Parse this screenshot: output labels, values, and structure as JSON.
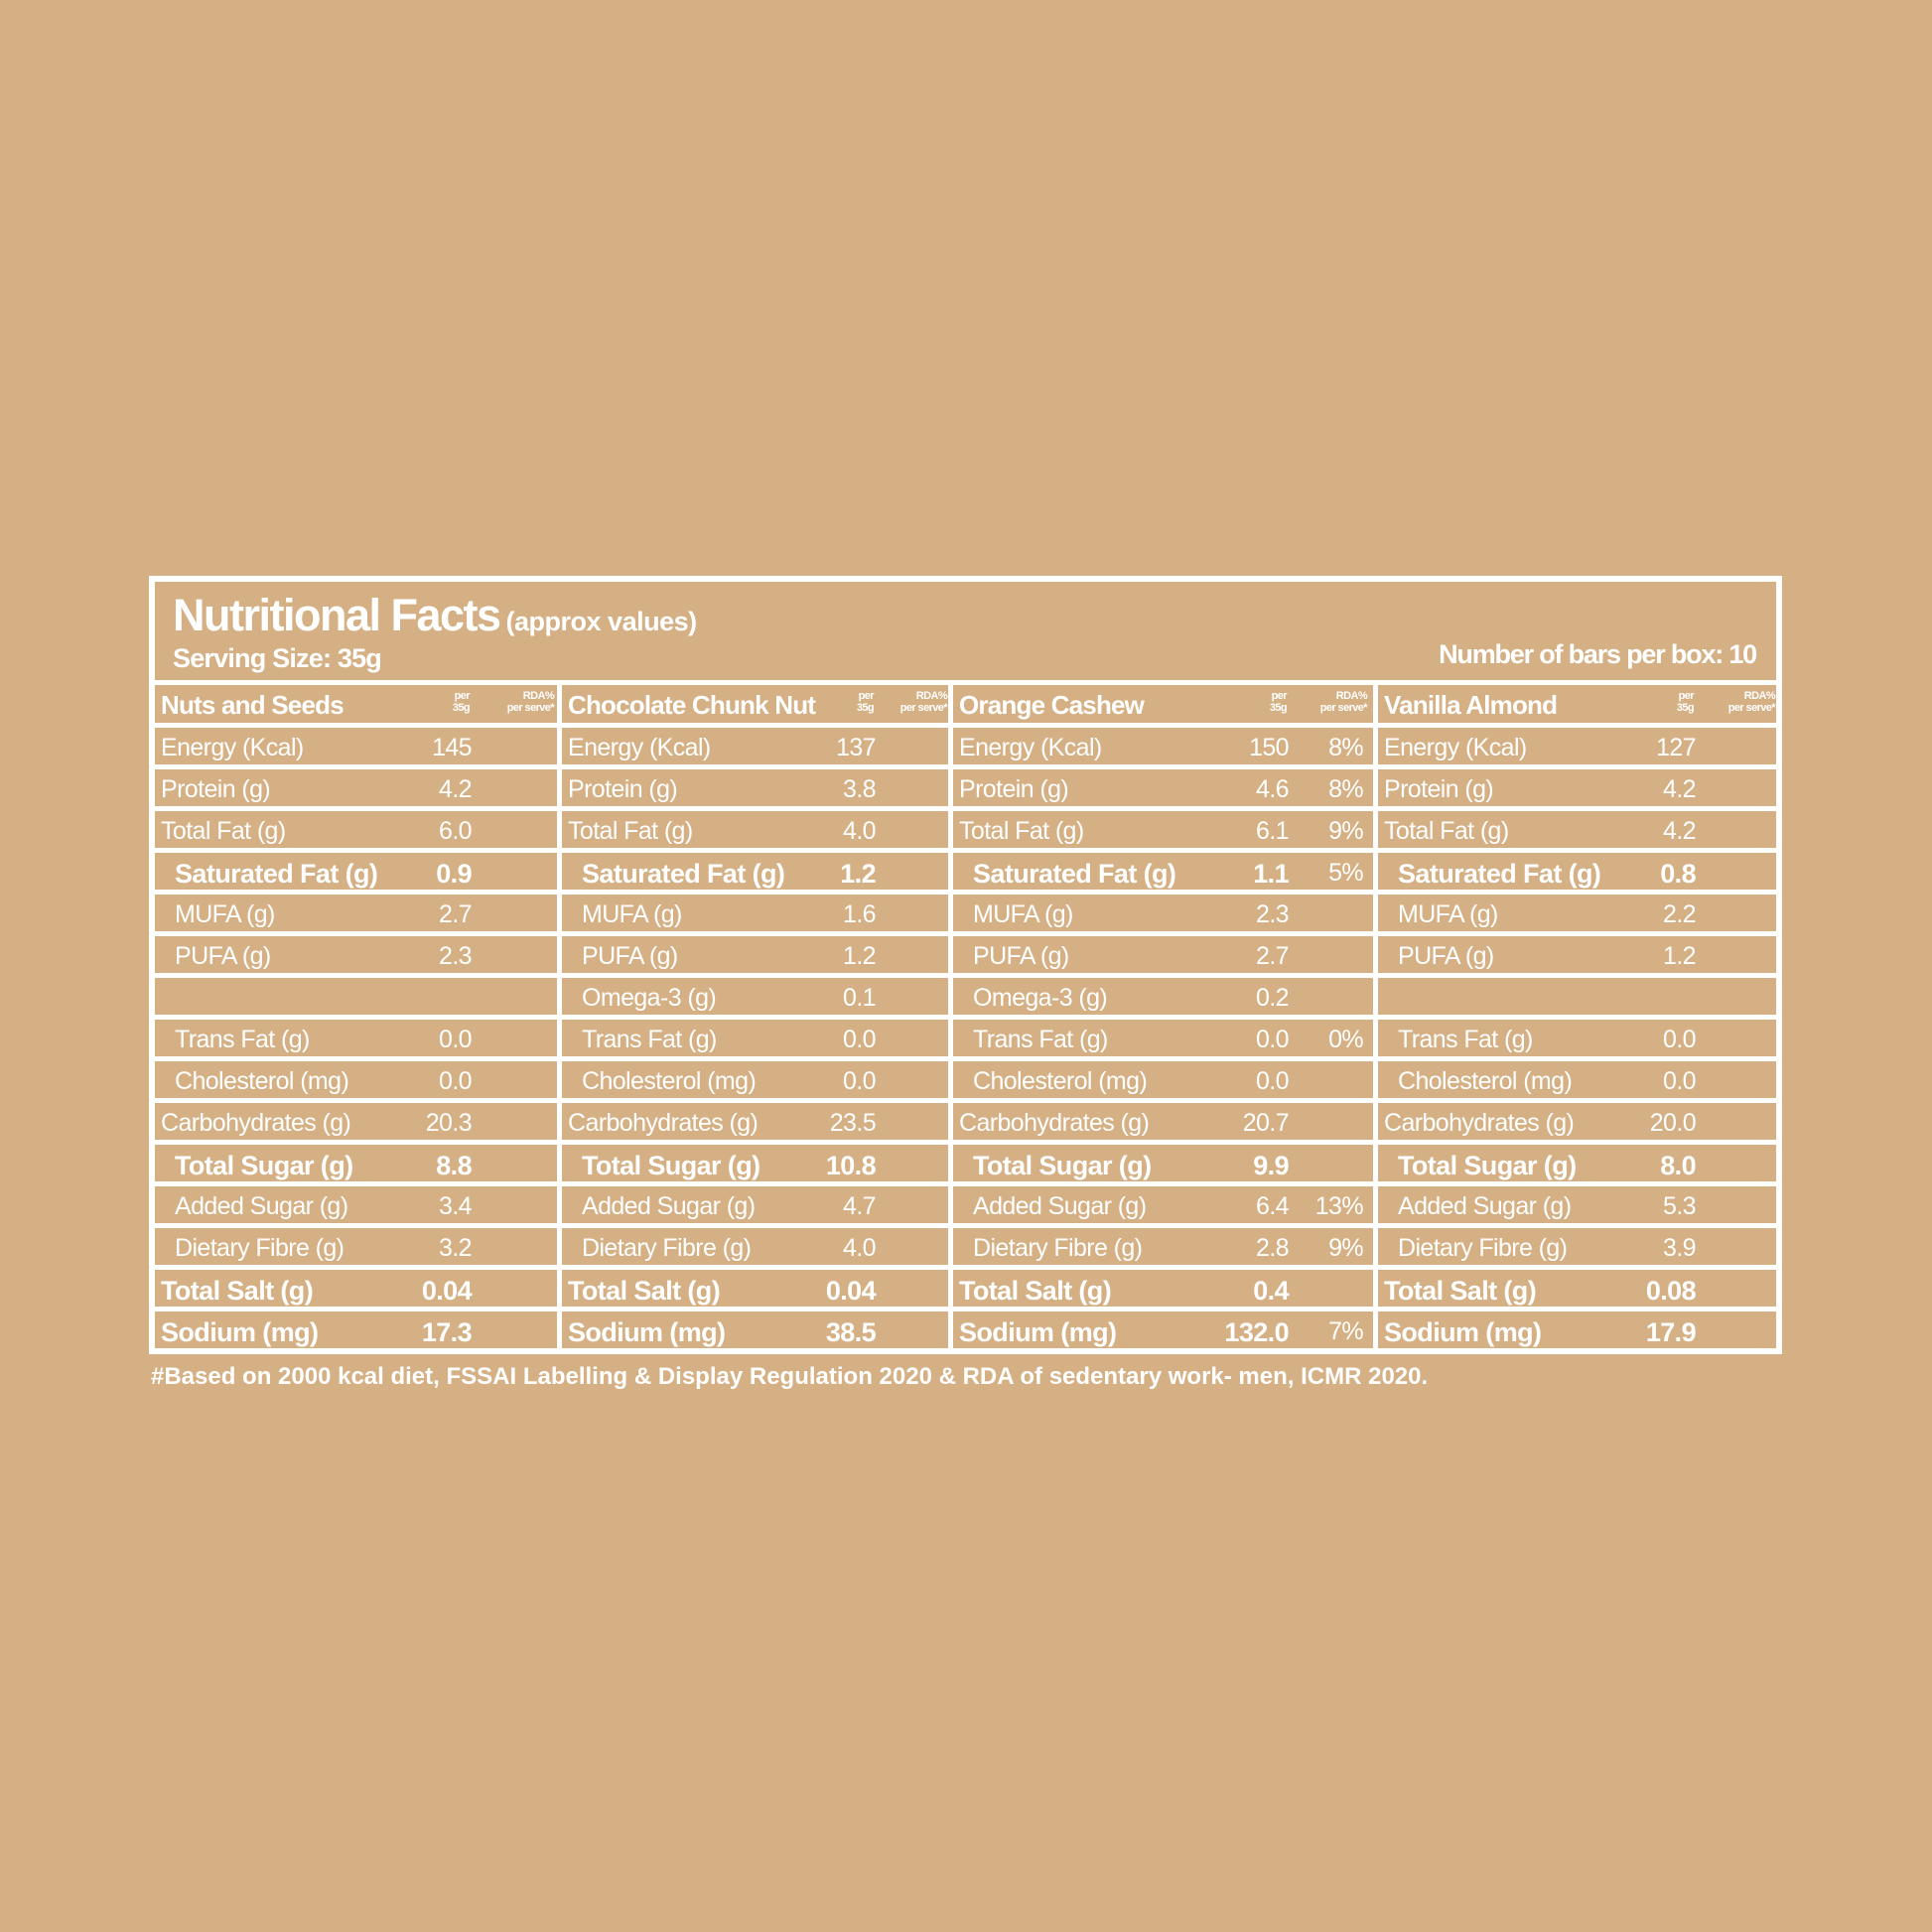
{
  "header": {
    "title": "Nutritional Facts",
    "title_note": "(approx values)",
    "serving_size": "Serving Size: 35g",
    "bars_per_box": "Number of bars per box: 10"
  },
  "column_header": {
    "per_line1": "per",
    "per_line2": "35g",
    "rda_line1": "RDA%",
    "rda_line2": "per serve*"
  },
  "row_labels": [
    "Energy (Kcal)",
    "Protein (g)",
    "Total Fat (g)",
    "Saturated Fat (g)",
    "MUFA (g)",
    "PUFA (g)",
    "Omega-3 (g)",
    "Trans Fat (g)",
    "Cholesterol (mg)",
    "Carbohydrates (g)",
    "Total Sugar (g)",
    "Added Sugar (g)",
    "Dietary Fibre (g)",
    "Total Salt (g)",
    "Sodium (mg)"
  ],
  "products": [
    {
      "name": "Nuts and Seeds",
      "values": [
        "145",
        "4.2",
        "6.0",
        "0.9",
        "2.7",
        "2.3",
        "",
        "0.0",
        "0.0",
        "20.3",
        "8.8",
        "3.4",
        "3.2",
        "0.04",
        "17.3"
      ],
      "rda": [
        "",
        "",
        "",
        "",
        "",
        "",
        "",
        "",
        "",
        "",
        "",
        "",
        "",
        "",
        ""
      ]
    },
    {
      "name": "Chocolate Chunk Nut",
      "values": [
        "137",
        "3.8",
        "4.0",
        "1.2",
        "1.6",
        "1.2",
        "0.1",
        "0.0",
        "0.0",
        "23.5",
        "10.8",
        "4.7",
        "4.0",
        "0.04",
        "38.5"
      ],
      "rda": [
        "",
        "",
        "",
        "",
        "",
        "",
        "",
        "",
        "",
        "",
        "",
        "",
        "",
        "",
        ""
      ]
    },
    {
      "name": "Orange Cashew",
      "values": [
        "150",
        "4.6",
        "6.1",
        "1.1",
        "2.3",
        "2.7",
        "0.2",
        "0.0",
        "0.0",
        "20.7",
        "9.9",
        "6.4",
        "2.8",
        "0.4",
        "132.0"
      ],
      "rda": [
        "8%",
        "8%",
        "9%",
        "5%",
        "",
        "",
        "",
        "0%",
        "",
        "",
        "",
        "13%",
        "9%",
        "",
        "7%"
      ]
    },
    {
      "name": "Vanilla Almond",
      "values": [
        "127",
        "4.2",
        "4.2",
        "0.8",
        "2.2",
        "1.2",
        "",
        "0.0",
        "0.0",
        "20.0",
        "8.0",
        "5.3",
        "3.9",
        "0.08",
        "17.9"
      ],
      "rda": [
        "",
        "",
        "",
        "",
        "",
        "",
        "",
        "",
        "",
        "",
        "",
        "",
        "",
        "",
        ""
      ]
    }
  ],
  "footnote": "#Based on 2000 kcal diet, FSSAI Labelling & Display Regulation 2020 & RDA of sedentary work- men, ICMR 2020.",
  "colors": {
    "background": "#d5b084",
    "text": "#ffffff",
    "rules": "#ffffff"
  }
}
